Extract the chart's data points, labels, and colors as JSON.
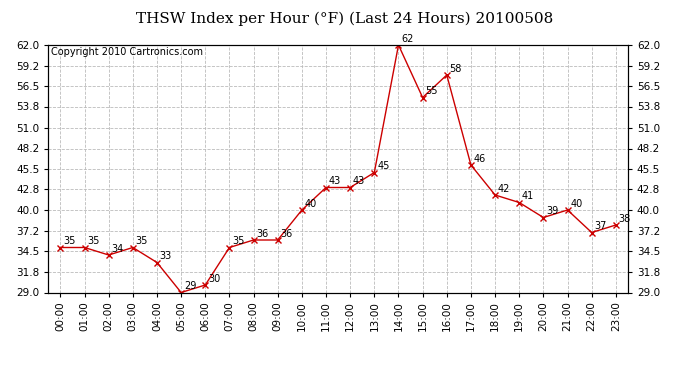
{
  "title": "THSW Index per Hour (°F) (Last 24 Hours) 20100508",
  "copyright": "Copyright 2010 Cartronics.com",
  "hours": [
    "00:00",
    "01:00",
    "02:00",
    "03:00",
    "04:00",
    "05:00",
    "06:00",
    "07:00",
    "08:00",
    "09:00",
    "10:00",
    "11:00",
    "12:00",
    "13:00",
    "14:00",
    "15:00",
    "16:00",
    "17:00",
    "18:00",
    "19:00",
    "20:00",
    "21:00",
    "22:00",
    "23:00"
  ],
  "values": [
    35,
    35,
    34,
    35,
    33,
    29,
    30,
    35,
    36,
    36,
    40,
    43,
    43,
    45,
    62,
    55,
    58,
    46,
    42,
    41,
    39,
    40,
    37,
    38
  ],
  "ylim": [
    29.0,
    62.0
  ],
  "yticks": [
    29.0,
    31.8,
    34.5,
    37.2,
    40.0,
    42.8,
    45.5,
    48.2,
    51.0,
    53.8,
    56.5,
    59.2,
    62.0
  ],
  "line_color": "#cc0000",
  "marker_color": "#cc0000",
  "bg_color": "#ffffff",
  "grid_color": "#bbbbbb",
  "title_fontsize": 11,
  "copyright_fontsize": 7,
  "label_fontsize": 7,
  "tick_fontsize": 7.5
}
